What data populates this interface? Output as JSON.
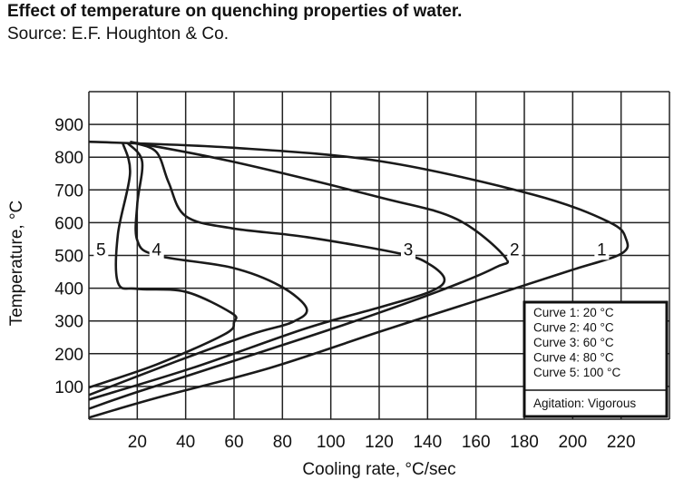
{
  "chart_data": {
    "type": "line",
    "title": "Effect of temperature on quenching properties of water.",
    "subtitle": "Source: E.F. Houghton & Co.",
    "xlabel": "Cooling rate, °C/sec",
    "ylabel": "Temperature, °C",
    "xlim": [
      0,
      240
    ],
    "ylim": [
      0,
      1000
    ],
    "grid": true,
    "xticks": [
      "20",
      "40",
      "60",
      "80",
      "100",
      "120",
      "140",
      "160",
      "180",
      "200",
      "220"
    ],
    "yticks": [
      "100",
      "200",
      "300",
      "400",
      "500",
      "600",
      "700",
      "800",
      "900"
    ],
    "series": [
      {
        "name": "1",
        "points": [
          [
            0,
            847
          ],
          [
            59,
            829
          ],
          [
            121,
            787
          ],
          [
            184,
            685
          ],
          [
            215,
            602
          ],
          [
            222,
            551
          ],
          [
            220,
            505
          ],
          [
            199,
            454
          ],
          [
            168,
            380
          ],
          [
            121,
            269
          ],
          [
            75,
            157
          ],
          [
            28,
            65
          ],
          [
            0,
            5
          ]
        ]
      },
      {
        "name": "2",
        "points": [
          [
            17,
            847
          ],
          [
            59,
            787
          ],
          [
            121,
            676
          ],
          [
            152,
            611
          ],
          [
            172,
            495
          ],
          [
            168,
            463
          ],
          [
            144,
            389
          ],
          [
            105,
            287
          ],
          [
            59,
            176
          ],
          [
            20,
            83
          ],
          [
            0,
            32
          ]
        ]
      },
      {
        "name": "3",
        "points": [
          [
            19,
            843
          ],
          [
            28,
            815
          ],
          [
            33,
            722
          ],
          [
            40,
            620
          ],
          [
            59,
            583
          ],
          [
            90,
            556
          ],
          [
            129,
            505
          ],
          [
            141,
            472
          ],
          [
            147,
            426
          ],
          [
            141,
            389
          ],
          [
            121,
            343
          ],
          [
            90,
            278
          ],
          [
            43,
            157
          ],
          [
            0,
            60
          ]
        ]
      },
      {
        "name": "4",
        "points": [
          [
            16,
            843
          ],
          [
            22,
            787
          ],
          [
            20,
            657
          ],
          [
            20,
            546
          ],
          [
            28,
            500
          ],
          [
            59,
            463
          ],
          [
            79,
            407
          ],
          [
            90,
            338
          ],
          [
            84,
            296
          ],
          [
            67,
            259
          ],
          [
            36,
            176
          ],
          [
            0,
            74
          ]
        ]
      },
      {
        "name": "5",
        "points": [
          [
            14,
            843
          ],
          [
            17,
            750
          ],
          [
            12,
            565
          ],
          [
            12,
            417
          ],
          [
            20,
            398
          ],
          [
            40,
            389
          ],
          [
            59,
            324
          ],
          [
            60,
            296
          ],
          [
            56,
            259
          ],
          [
            28,
            167
          ],
          [
            0,
            97
          ]
        ]
      }
    ],
    "curve_labels": [
      {
        "text": "5",
        "x": 5,
        "y": 520
      },
      {
        "text": "4",
        "x": 28,
        "y": 520
      },
      {
        "text": "3",
        "x": 132,
        "y": 520
      },
      {
        "text": "2",
        "x": 176,
        "y": 520
      },
      {
        "text": "1",
        "x": 212,
        "y": 520
      }
    ],
    "legend": {
      "placement": "bottom-right",
      "entries": [
        "Curve 1:  20 °C",
        "Curve 2:  40 °C",
        "Curve 3:  60 °C",
        "Curve 4:  80 °C",
        "Curve 5:  100 °C"
      ],
      "note": "Agitation:  Vigorous"
    }
  }
}
